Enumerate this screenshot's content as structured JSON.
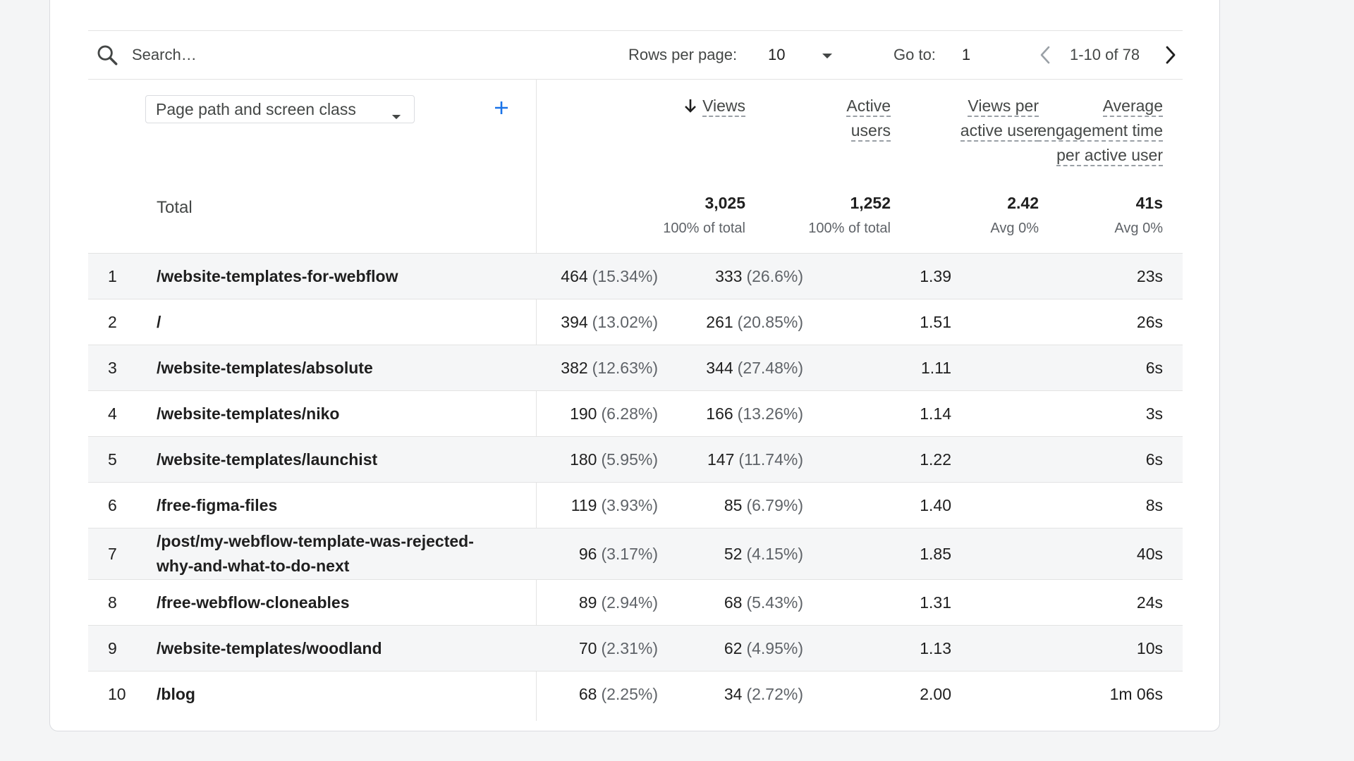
{
  "toolbar": {
    "search_placeholder": "Search…",
    "rows_per_page_label": "Rows per page:",
    "rows_per_page_value": "10",
    "goto_label": "Go to:",
    "goto_value": "1",
    "range_text": "1-10 of 78"
  },
  "dimension": {
    "selector_label": "Page path and screen class"
  },
  "columns": {
    "views": "Views",
    "active_users_line1": "Active",
    "active_users_line2": "users",
    "views_per_user_line1": "Views per",
    "views_per_user_line2": "active user",
    "engagement_line1": "Average",
    "engagement_line2": "engagement time",
    "engagement_line3": "per active user"
  },
  "totals": {
    "label": "Total",
    "views": "3,025",
    "views_sub": "100% of total",
    "active_users": "1,252",
    "active_users_sub": "100% of total",
    "views_per_user": "2.42",
    "views_per_user_sub": "Avg 0%",
    "engagement": "41s",
    "engagement_sub": "Avg 0%"
  },
  "rows": [
    {
      "index": "1",
      "path": "/website-templates-for-webflow",
      "views": "464",
      "views_pct": "(15.34%)",
      "users": "333",
      "users_pct": "(26.6%)",
      "vpu": "1.39",
      "engagement": "23s"
    },
    {
      "index": "2",
      "path": "/",
      "views": "394",
      "views_pct": "(13.02%)",
      "users": "261",
      "users_pct": "(20.85%)",
      "vpu": "1.51",
      "engagement": "26s"
    },
    {
      "index": "3",
      "path": "/website-templates/absolute",
      "views": "382",
      "views_pct": "(12.63%)",
      "users": "344",
      "users_pct": "(27.48%)",
      "vpu": "1.11",
      "engagement": "6s"
    },
    {
      "index": "4",
      "path": "/website-templates/niko",
      "views": "190",
      "views_pct": "(6.28%)",
      "users": "166",
      "users_pct": "(13.26%)",
      "vpu": "1.14",
      "engagement": "3s"
    },
    {
      "index": "5",
      "path": "/website-templates/launchist",
      "views": "180",
      "views_pct": "(5.95%)",
      "users": "147",
      "users_pct": "(11.74%)",
      "vpu": "1.22",
      "engagement": "6s"
    },
    {
      "index": "6",
      "path": "/free-figma-files",
      "views": "119",
      "views_pct": "(3.93%)",
      "users": "85",
      "users_pct": "(6.79%)",
      "vpu": "1.40",
      "engagement": "8s"
    },
    {
      "index": "7",
      "path": "/post/my-webflow-template-was-rejected-why-and-what-to-do-next",
      "views": "96",
      "views_pct": "(3.17%)",
      "users": "52",
      "users_pct": "(4.15%)",
      "vpu": "1.85",
      "engagement": "40s"
    },
    {
      "index": "8",
      "path": "/free-webflow-cloneables",
      "views": "89",
      "views_pct": "(2.94%)",
      "users": "68",
      "users_pct": "(5.43%)",
      "vpu": "1.31",
      "engagement": "24s"
    },
    {
      "index": "9",
      "path": "/website-templates/woodland",
      "views": "70",
      "views_pct": "(2.31%)",
      "users": "62",
      "users_pct": "(4.95%)",
      "vpu": "1.13",
      "engagement": "10s"
    },
    {
      "index": "10",
      "path": "/blog",
      "views": "68",
      "views_pct": "(2.25%)",
      "users": "34",
      "users_pct": "(2.72%)",
      "vpu": "2.00",
      "engagement": "1m 06s"
    }
  ],
  "colors": {
    "accent": "#1a73e8",
    "row_shade": "#f5f6f7",
    "divider": "#e3e3e3"
  }
}
